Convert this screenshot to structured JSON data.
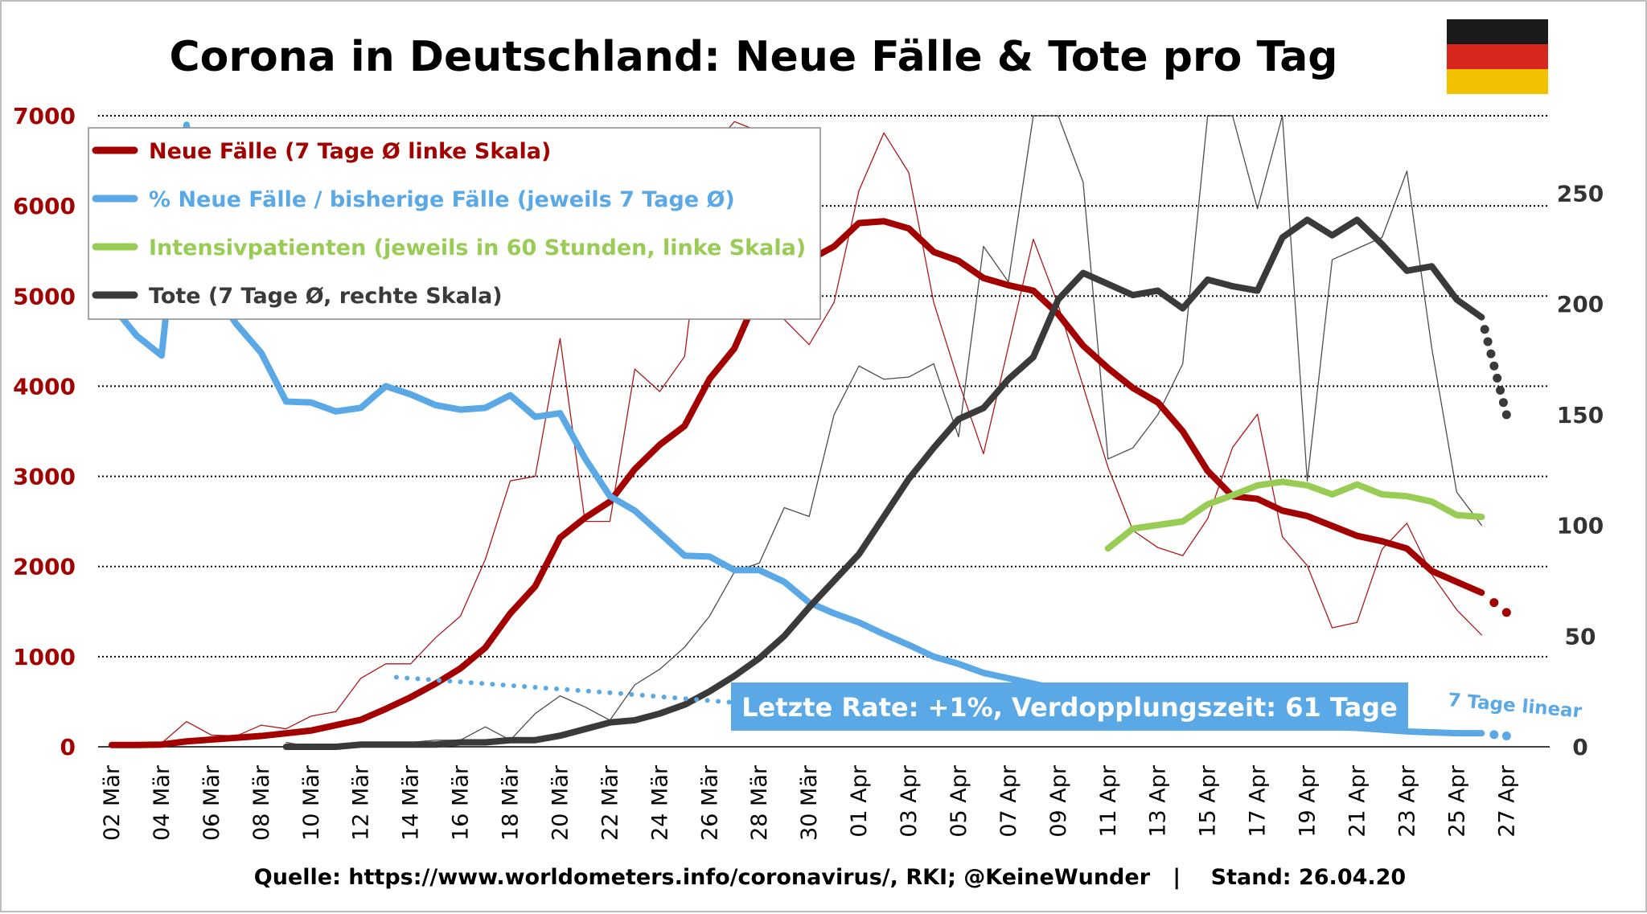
{
  "title": "Corona in Deutschland: Neue Fälle & Tote pro Tag",
  "source_text": "Quelle: https://www.worldometers.info/coronavirus/, RKI; @KeineWunder   |    Stand: 26.04.20",
  "rate_box": "Letzte Rate: +1%, Verdopplungszeit: 61 Tage",
  "trend_note": "7 Tage linear",
  "flag_colors": [
    "#1a1a1a",
    "#d7261e",
    "#f2c200"
  ],
  "colors": {
    "cases": "#a30000",
    "pct": "#5aa9e6",
    "icu": "#99cc55",
    "deaths": "#3a3a3a",
    "rate_box_bg": "#5aa9e6"
  },
  "legend": [
    {
      "label": "Neue Fälle (7 Tage Ø linke Skala)",
      "color": "#a30000"
    },
    {
      "label": "% Neue Fälle / bisherige Fälle (jeweils 7 Tage Ø)",
      "color": "#5aa9e6"
    },
    {
      "label": "Intensivpatienten (jeweils in 60 Stunden, linke Skala)",
      "color": "#99cc55"
    },
    {
      "label": "Tote (7 Tage Ø, rechte Skala)",
      "color": "#3a3a3a"
    }
  ],
  "chart_data": {
    "type": "line",
    "title": "Corona in Deutschland: Neue Fälle & Tote pro Tag",
    "x_tick_labels": [
      "02 Mär",
      "04 Mär",
      "06 Mär",
      "08 Mär",
      "10 Mär",
      "12 Mär",
      "14 Mär",
      "16 Mär",
      "18 Mär",
      "20 Mär",
      "22 Mär",
      "24 Mär",
      "26 Mär",
      "28 Mär",
      "30 Mär",
      "01 Apr",
      "03 Apr",
      "05 Apr",
      "07 Apr",
      "09 Apr",
      "11 Apr",
      "13 Apr",
      "15 Apr",
      "17 Apr",
      "19 Apr",
      "21 Apr",
      "23 Apr",
      "25 Apr",
      "27 Apr"
    ],
    "x_start_date": "2020-03-02",
    "left_axis": {
      "ylim": [
        0,
        7000
      ],
      "ticks": [
        0,
        1000,
        2000,
        3000,
        4000,
        5000,
        6000,
        7000
      ]
    },
    "right_axis": {
      "ylim": [
        0,
        285
      ],
      "ticks": [
        0,
        50,
        100,
        150,
        200,
        250
      ]
    },
    "grid": true,
    "legend_position": "top-left",
    "series": [
      {
        "name": "Neue Fälle (7 Tage Ø linke Skala)",
        "axis": "left",
        "style": "thick",
        "x": [
          "2020-03-02",
          "2020-03-03",
          "2020-03-04",
          "2020-03-05",
          "2020-03-06",
          "2020-03-07",
          "2020-03-08",
          "2020-03-09",
          "2020-03-10",
          "2020-03-11",
          "2020-03-12",
          "2020-03-13",
          "2020-03-14",
          "2020-03-15",
          "2020-03-16",
          "2020-03-17",
          "2020-03-18",
          "2020-03-19",
          "2020-03-20",
          "2020-03-21",
          "2020-03-22",
          "2020-03-23",
          "2020-03-24",
          "2020-03-25",
          "2020-03-26",
          "2020-03-27",
          "2020-03-28",
          "2020-03-29",
          "2020-03-30",
          "2020-03-31",
          "2020-04-01",
          "2020-04-02",
          "2020-04-03",
          "2020-04-04",
          "2020-04-05",
          "2020-04-06",
          "2020-04-07",
          "2020-04-08",
          "2020-04-09",
          "2020-04-10",
          "2020-04-11",
          "2020-04-12",
          "2020-04-13",
          "2020-04-14",
          "2020-04-15",
          "2020-04-16",
          "2020-04-17",
          "2020-04-18",
          "2020-04-19",
          "2020-04-20",
          "2020-04-21",
          "2020-04-22",
          "2020-04-23",
          "2020-04-24",
          "2020-04-25",
          "2020-04-26"
        ],
        "values": [
          20,
          20,
          25,
          60,
          80,
          100,
          120,
          150,
          180,
          240,
          300,
          420,
          550,
          700,
          870,
          1100,
          1480,
          1780,
          2320,
          2540,
          2720,
          3080,
          3350,
          3560,
          4080,
          4420,
          5050,
          5050,
          5400,
          5550,
          5810,
          5830,
          5750,
          5490,
          5390,
          5200,
          5120,
          5060,
          4800,
          4450,
          4200,
          3980,
          3820,
          3500,
          3060,
          2780,
          2750,
          2620,
          2560,
          2450,
          2340,
          2280,
          2200,
          1950,
          1830,
          1710
        ]
      },
      {
        "name": "Neue Fälle (Prognose)",
        "axis": "left",
        "style": "dotted",
        "x": [
          "2020-04-26",
          "2020-04-27"
        ],
        "values": [
          1710,
          1490
        ]
      },
      {
        "name": "Neue Fälle (täglich)",
        "axis": "left",
        "style": "thin",
        "x": [
          "2020-03-02",
          "2020-03-03",
          "2020-03-04",
          "2020-03-05",
          "2020-03-06",
          "2020-03-07",
          "2020-03-08",
          "2020-03-09",
          "2020-03-10",
          "2020-03-11",
          "2020-03-12",
          "2020-03-13",
          "2020-03-14",
          "2020-03-15",
          "2020-03-16",
          "2020-03-17",
          "2020-03-18",
          "2020-03-19",
          "2020-03-20",
          "2020-03-21",
          "2020-03-22",
          "2020-03-23",
          "2020-03-24",
          "2020-03-25",
          "2020-03-26",
          "2020-03-27",
          "2020-03-28",
          "2020-03-29",
          "2020-03-30",
          "2020-03-31",
          "2020-04-01",
          "2020-04-02",
          "2020-04-03",
          "2020-04-04",
          "2020-04-05",
          "2020-04-06",
          "2020-04-07",
          "2020-04-08",
          "2020-04-09",
          "2020-04-10",
          "2020-04-11",
          "2020-04-12",
          "2020-04-13",
          "2020-04-14",
          "2020-04-15",
          "2020-04-16",
          "2020-04-17",
          "2020-04-18",
          "2020-04-19",
          "2020-04-20",
          "2020-04-21",
          "2020-04-22",
          "2020-04-23",
          "2020-04-24",
          "2020-04-25",
          "2020-04-26"
        ],
        "values": [
          10,
          20,
          40,
          280,
          130,
          120,
          240,
          200,
          340,
          390,
          760,
          920,
          920,
          1210,
          1450,
          2080,
          2950,
          3000,
          4530,
          2500,
          2500,
          4190,
          3940,
          4330,
          6615,
          6935,
          6825,
          4740,
          4460,
          4930,
          6170,
          6810,
          6370,
          4930,
          4050,
          3250,
          4440,
          5630,
          4900,
          4000,
          3100,
          2400,
          2210,
          2120,
          2530,
          3320,
          3690,
          2330,
          2010,
          1320,
          1380,
          2190,
          2480,
          1910,
          1520,
          1240
        ]
      },
      {
        "name": "% Neue Fälle / bisherige Fälle (jeweils 7 Tage Ø)",
        "axis": "left",
        "style": "thick",
        "x": [
          "2020-03-02",
          "2020-03-03",
          "2020-03-04",
          "2020-03-05",
          "2020-03-06",
          "2020-03-07",
          "2020-03-08",
          "2020-03-09",
          "2020-03-10",
          "2020-03-11",
          "2020-03-12",
          "2020-03-13",
          "2020-03-14",
          "2020-03-15",
          "2020-03-16",
          "2020-03-17",
          "2020-03-18",
          "2020-03-19",
          "2020-03-20",
          "2020-03-21",
          "2020-03-22",
          "2020-03-23",
          "2020-03-24",
          "2020-03-25",
          "2020-03-26",
          "2020-03-27",
          "2020-03-28",
          "2020-03-29",
          "2020-03-30",
          "2020-03-31",
          "2020-04-01",
          "2020-04-02",
          "2020-04-03",
          "2020-04-04",
          "2020-04-05",
          "2020-04-06",
          "2020-04-07",
          "2020-04-08",
          "2020-04-09",
          "2020-04-10",
          "2020-04-11",
          "2020-04-12",
          "2020-04-13",
          "2020-04-14",
          "2020-04-15",
          "2020-04-16",
          "2020-04-17",
          "2020-04-18",
          "2020-04-19",
          "2020-04-20",
          "2020-04-21",
          "2020-04-22",
          "2020-04-23",
          "2020-04-24",
          "2020-04-25",
          "2020-04-26"
        ],
        "values": [
          4900,
          4560,
          4340,
          6900,
          5100,
          4690,
          4370,
          3830,
          3820,
          3720,
          3760,
          4000,
          3910,
          3790,
          3740,
          3760,
          3900,
          3660,
          3700,
          3200,
          2780,
          2620,
          2370,
          2120,
          2110,
          1960,
          1960,
          1830,
          1600,
          1480,
          1380,
          1250,
          1130,
          1000,
          920,
          820,
          760,
          700,
          640,
          580,
          520,
          470,
          430,
          390,
          350,
          320,
          290,
          260,
          240,
          220,
          210,
          190,
          170,
          160,
          150,
          150
        ]
      },
      {
        "name": "% Neue Fälle (Prognose)",
        "axis": "left",
        "style": "dotted",
        "x": [
          "2020-04-26",
          "2020-04-27"
        ],
        "values": [
          150,
          120
        ]
      },
      {
        "name": "7 Tage linear",
        "axis": "left",
        "style": "dotted",
        "x": [
          "2020-03-13",
          "2020-03-22",
          "2020-04-01"
        ],
        "values": [
          780,
          600,
          380
        ]
      },
      {
        "name": "Intensivpatienten (jeweils in 60 Stunden, linke Skala)",
        "axis": "left",
        "style": "thick",
        "x": [
          "2020-04-11",
          "2020-04-12",
          "2020-04-13",
          "2020-04-14",
          "2020-04-15",
          "2020-04-16",
          "2020-04-17",
          "2020-04-18",
          "2020-04-19",
          "2020-04-20",
          "2020-04-21",
          "2020-04-22",
          "2020-04-23",
          "2020-04-24",
          "2020-04-25",
          "2020-04-26"
        ],
        "values": [
          2200,
          2420,
          2460,
          2500,
          2690,
          2790,
          2900,
          2940,
          2900,
          2800,
          2910,
          2800,
          2780,
          2720,
          2570,
          2550
        ]
      },
      {
        "name": "Tote (7 Tage Ø, rechte Skala)",
        "axis": "right",
        "style": "thick",
        "x": [
          "2020-03-09",
          "2020-03-10",
          "2020-03-11",
          "2020-03-12",
          "2020-03-13",
          "2020-03-14",
          "2020-03-15",
          "2020-03-16",
          "2020-03-17",
          "2020-03-18",
          "2020-03-19",
          "2020-03-20",
          "2020-03-21",
          "2020-03-22",
          "2020-03-23",
          "2020-03-24",
          "2020-03-25",
          "2020-03-26",
          "2020-03-27",
          "2020-03-28",
          "2020-03-29",
          "2020-03-30",
          "2020-03-31",
          "2020-04-01",
          "2020-04-02",
          "2020-04-03",
          "2020-04-04",
          "2020-04-05",
          "2020-04-06",
          "2020-04-07",
          "2020-04-08",
          "2020-04-09",
          "2020-04-10",
          "2020-04-11",
          "2020-04-12",
          "2020-04-13",
          "2020-04-14",
          "2020-04-15",
          "2020-04-16",
          "2020-04-17",
          "2020-04-18",
          "2020-04-19",
          "2020-04-20",
          "2020-04-21",
          "2020-04-22",
          "2020-04-23",
          "2020-04-24",
          "2020-04-25",
          "2020-04-26"
        ],
        "values": [
          0,
          0,
          0,
          1,
          1,
          1,
          1,
          2,
          2,
          3,
          3,
          5,
          8,
          11,
          12,
          15,
          19,
          25,
          32,
          40,
          50,
          63,
          75,
          87,
          104,
          121,
          135,
          148,
          153,
          166,
          176,
          202,
          214,
          209,
          204,
          206,
          198,
          211,
          208,
          206,
          230,
          238,
          231,
          238,
          227,
          215,
          217,
          202,
          194
        ]
      },
      {
        "name": "Tote (Prognose)",
        "axis": "right",
        "style": "dotted",
        "x": [
          "2020-04-26",
          "2020-04-27"
        ],
        "values": [
          194,
          150
        ]
      },
      {
        "name": "Tote (täglich)",
        "axis": "right",
        "style": "thin",
        "x": [
          "2020-03-09",
          "2020-03-10",
          "2020-03-11",
          "2020-03-12",
          "2020-03-13",
          "2020-03-14",
          "2020-03-15",
          "2020-03-16",
          "2020-03-17",
          "2020-03-18",
          "2020-03-19",
          "2020-03-20",
          "2020-03-21",
          "2020-03-22",
          "2020-03-23",
          "2020-03-24",
          "2020-03-25",
          "2020-03-26",
          "2020-03-27",
          "2020-03-28",
          "2020-03-29",
          "2020-03-30",
          "2020-03-31",
          "2020-04-01",
          "2020-04-02",
          "2020-04-03",
          "2020-04-04",
          "2020-04-05",
          "2020-04-06",
          "2020-04-07",
          "2020-04-08",
          "2020-04-09",
          "2020-04-10",
          "2020-04-11",
          "2020-04-12",
          "2020-04-13",
          "2020-04-14",
          "2020-04-15",
          "2020-04-16",
          "2020-04-17",
          "2020-04-18",
          "2020-04-19",
          "2020-04-20",
          "2020-04-21",
          "2020-04-22",
          "2020-04-23",
          "2020-04-24",
          "2020-04-25",
          "2020-04-26"
        ],
        "values": [
          2,
          0,
          1,
          2,
          2,
          2,
          3,
          3,
          9,
          3,
          15,
          23,
          18,
          12,
          28,
          35,
          45,
          59,
          79,
          83,
          108,
          104,
          150,
          172,
          166,
          167,
          173,
          140,
          226,
          210,
          298,
          290,
          255,
          130,
          135,
          150,
          173,
          310,
          310,
          243,
          310,
          120,
          220,
          225,
          230,
          260,
          180,
          115,
          100
        ]
      }
    ]
  }
}
